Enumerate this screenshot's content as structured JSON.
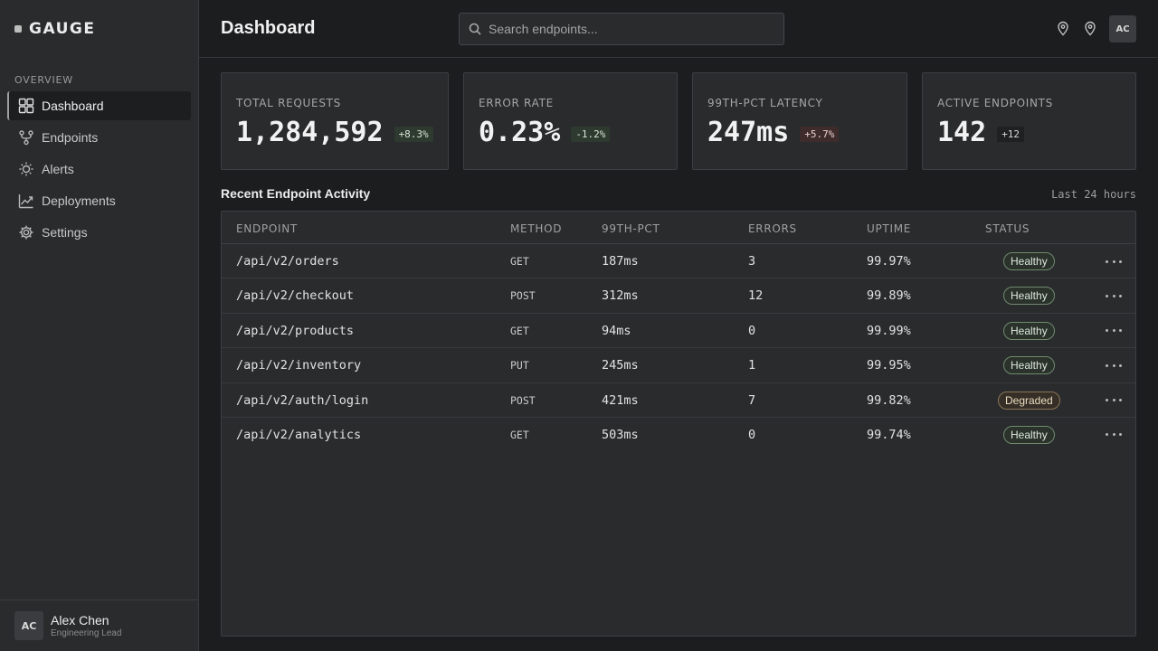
{
  "brand": {
    "name": "GAUGE"
  },
  "sidebar": {
    "section_label": "OVERVIEW",
    "items": [
      {
        "label": "Dashboard",
        "icon": "grid-icon",
        "active": true
      },
      {
        "label": "Endpoints",
        "icon": "branch-icon",
        "active": false
      },
      {
        "label": "Alerts",
        "icon": "sun-icon",
        "active": false
      },
      {
        "label": "Deployments",
        "icon": "trend-icon",
        "active": false
      },
      {
        "label": "Settings",
        "icon": "gear-icon",
        "active": false
      }
    ],
    "user": {
      "initials": "AC",
      "name": "Alex Chen",
      "role": "Engineering Lead"
    }
  },
  "header": {
    "title": "Dashboard",
    "search_placeholder": "Search endpoints...",
    "avatar_initials": "AC"
  },
  "stats": [
    {
      "label": "TOTAL REQUESTS",
      "value": "1,284,592",
      "delta": "+8.3%",
      "tone": "good"
    },
    {
      "label": "ERROR RATE",
      "value": "0.23%",
      "delta": "-1.2%",
      "tone": "good"
    },
    {
      "label": "99TH-PCT LATENCY",
      "value": "247ms",
      "delta": "+5.7%",
      "tone": "bad"
    },
    {
      "label": "ACTIVE ENDPOINTS",
      "value": "142",
      "delta": "+12",
      "tone": "neutral"
    }
  ],
  "activity": {
    "title": "Recent Endpoint Activity",
    "range": "Last 24 hours",
    "columns": [
      "ENDPOINT",
      "METHOD",
      "99TH-PCT",
      "ERRORS",
      "UPTIME",
      "STATUS"
    ],
    "rows": [
      {
        "endpoint": "/api/v2/orders",
        "method": "GET",
        "p99": "187ms",
        "errors": "3",
        "uptime": "99.97%",
        "status": "Healthy"
      },
      {
        "endpoint": "/api/v2/checkout",
        "method": "POST",
        "p99": "312ms",
        "errors": "12",
        "uptime": "99.89%",
        "status": "Healthy"
      },
      {
        "endpoint": "/api/v2/products",
        "method": "GET",
        "p99": "94ms",
        "errors": "0",
        "uptime": "99.99%",
        "status": "Healthy"
      },
      {
        "endpoint": "/api/v2/inventory",
        "method": "PUT",
        "p99": "245ms",
        "errors": "1",
        "uptime": "99.95%",
        "status": "Healthy"
      },
      {
        "endpoint": "/api/v2/auth/login",
        "method": "POST",
        "p99": "421ms",
        "errors": "7",
        "uptime": "99.82%",
        "status": "Degraded"
      },
      {
        "endpoint": "/api/v2/analytics",
        "method": "GET",
        "p99": "503ms",
        "errors": "0",
        "uptime": "99.74%",
        "status": "Healthy"
      }
    ]
  },
  "colors": {
    "background": "#1c1d1f",
    "panel": "#2a2b2d",
    "healthy": "#6f8a6f",
    "degraded": "#8a7656"
  }
}
